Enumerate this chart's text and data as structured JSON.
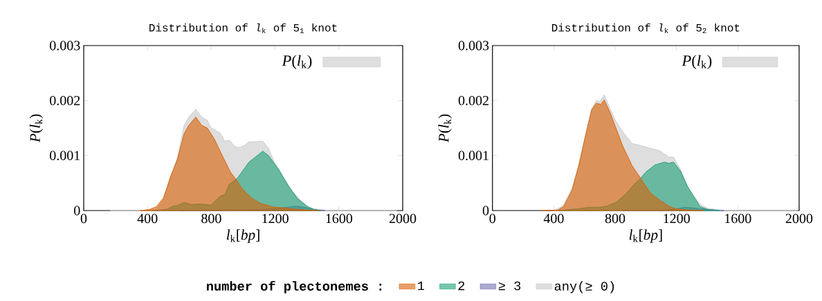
{
  "chart_data": [
    {
      "type": "area",
      "title": "Distribution of *l*$_{k}$ of 5$_{1}$ knot",
      "xlabel": "*l*$_{k}$[*bp*]",
      "ylabel": "*P*(*l*$_{k}$)",
      "legend_title": "number of plectonemes :",
      "legend": "bottom",
      "annotations": [
        "*P*(*l*$_{k}$)"
      ],
      "xlim": [
        0,
        2000
      ],
      "ylim": [
        0,
        0.003
      ],
      "xticks": [
        0,
        400,
        800,
        1200,
        1600,
        2000
      ],
      "yticks": [
        0,
        0.001,
        0.002,
        0.003
      ],
      "series": [
        {
          "name": "1",
          "color": "#d95f02",
          "x": [
            355,
            413,
            456,
            500,
            543,
            587,
            630,
            659,
            703,
            739,
            775,
            819,
            877,
            920,
            956,
            993,
            1051,
            1109,
            1195,
            1253,
            1340,
            1471
          ],
          "values": [
            0,
            2e-05,
            7e-05,
            0.00023,
            0.0006,
            0.00093,
            0.0014,
            0.00155,
            0.0017,
            0.00155,
            0.0015,
            0.0013,
            0.00095,
            0.0007,
            0.00056,
            0.0004,
            0.00023,
            0.00013,
            6e-05,
            5e-05,
            2e-05,
            0
          ]
        },
        {
          "name": "2",
          "color": "#1b9e77",
          "x": [
            427,
            485,
            529,
            558,
            587,
            630,
            674,
            732,
            797,
            826,
            855,
            884,
            913,
            964,
            1036,
            1123,
            1159,
            1224,
            1282,
            1340,
            1398,
            1442,
            1485
          ],
          "values": [
            0,
            1e-05,
            3e-05,
            8e-05,
            9e-05,
            0.00015,
            0.00011,
            0.00012,
            0.0001,
            0.00018,
            0.00026,
            0.00029,
            0.00048,
            0.00059,
            0.00088,
            0.00108,
            0.001,
            0.00074,
            0.00045,
            0.00022,
            8e-05,
            2e-05,
            0
          ]
        },
        {
          "name": "≥ 3",
          "color": "#7570b3",
          "x": [
            601,
            819,
            1109,
            1210,
            1268,
            1333,
            1384,
            1442,
            1514
          ],
          "values": [
            0,
            1e-05,
            2e-05,
            4e-05,
            6e-05,
            8e-05,
            6e-05,
            2e-05,
            0
          ]
        },
        {
          "name": "any(≥ 0)",
          "color": "#c8c8c8",
          "x": [
            167,
            384,
            456,
            500,
            543,
            587,
            630,
            659,
            703,
            739,
            775,
            797,
            855,
            884,
            913,
            942,
            971,
            1007,
            1036,
            1065,
            1123,
            1159,
            1195,
            1253,
            1311,
            1362,
            1413,
            1471,
            1543,
            1963
          ],
          "values": [
            0,
            0,
            2e-05,
            0.00019,
            0.00061,
            0.00095,
            0.00155,
            0.0017,
            0.00184,
            0.0017,
            0.00164,
            0.00151,
            0.00141,
            0.00126,
            0.00128,
            0.00118,
            0.00114,
            0.00118,
            0.00125,
            0.00125,
            0.00126,
            0.00113,
            0.00088,
            0.0006,
            0.00034,
            0.00018,
            6e-05,
            2e-05,
            0,
            0
          ]
        }
      ]
    },
    {
      "type": "area",
      "title": "Distribution of *l*$_{k}$ of 5$_{2}$ knot",
      "xlabel": "*l*$_{k}$[*bp*]",
      "ylabel": "*P*(*l*$_{k}$)",
      "annotations": [
        "*P*(*l*$_{k}$)"
      ],
      "xlim": [
        0,
        2000
      ],
      "ylim": [
        0,
        0.003
      ],
      "xticks": [
        0,
        400,
        800,
        1200,
        1600,
        2000
      ],
      "yticks": [
        0,
        0.001,
        0.002,
        0.003
      ],
      "series": [
        {
          "color": "#d95f02",
          "x": [
            323,
            429,
            466,
            519,
            564,
            609,
            647,
            677,
            707,
            729,
            767,
            805,
            850,
            910,
            970,
            1030,
            1090,
            1151,
            1196,
            1271,
            1376
          ],
          "values": [
            0,
            1e-05,
            8e-05,
            0.00037,
            0.00083,
            0.00139,
            0.00183,
            0.00195,
            0.00193,
            0.00201,
            0.00178,
            0.0015,
            0.00117,
            0.00082,
            0.00057,
            0.00032,
            0.00019,
            8e-05,
            3e-05,
            1e-05,
            0
          ]
        },
        {
          "color": "#1b9e77",
          "x": [
            429,
            549,
            639,
            699,
            744,
            805,
            865,
            925,
            970,
            1000,
            1060,
            1121,
            1151,
            1181,
            1226,
            1271,
            1316,
            1354,
            1406,
            1481
          ],
          "values": [
            0,
            3e-05,
            6e-05,
            6e-05,
            8e-05,
            0.00015,
            0.00029,
            0.00048,
            0.0006,
            0.0007,
            0.00083,
            0.00088,
            0.00086,
            0.00088,
            0.00072,
            0.00044,
            0.00024,
            7e-05,
            2e-05,
            0
          ]
        },
        {
          "color": "#7570b3",
          "x": [
            850,
            1121,
            1196,
            1256,
            1301,
            1361,
            1451,
            1511
          ],
          "values": [
            0,
            1e-05,
            3e-05,
            6e-05,
            5e-05,
            3e-05,
            1e-05,
            0
          ]
        },
        {
          "color": "#c8c8c8",
          "x": [
            399,
            459,
            519,
            564,
            609,
            647,
            677,
            699,
            729,
            767,
            805,
            850,
            910,
            970,
            1030,
            1090,
            1151,
            1181,
            1226,
            1271,
            1316,
            1361,
            1406,
            1481,
            1542,
            1993
          ],
          "values": [
            0,
            8e-05,
            0.0004,
            0.00084,
            0.0014,
            0.00185,
            0.002,
            0.00198,
            0.0021,
            0.00185,
            0.00162,
            0.00143,
            0.00122,
            0.00118,
            0.00113,
            0.00109,
            0.00097,
            0.00097,
            0.00075,
            0.00045,
            0.00025,
            0.0001,
            4e-05,
            1e-05,
            0,
            0
          ]
        }
      ]
    }
  ]
}
